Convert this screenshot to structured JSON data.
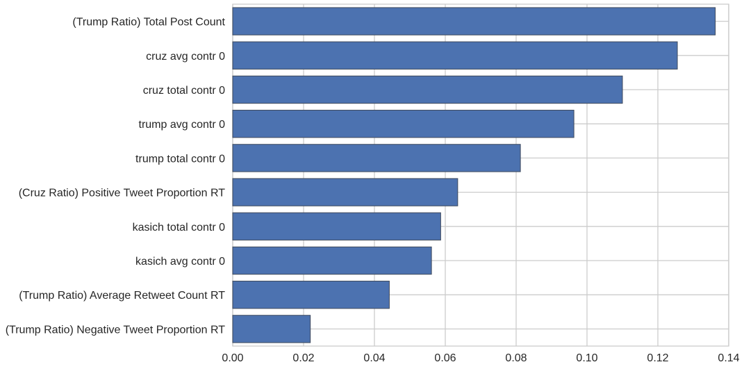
{
  "chart_data": {
    "type": "bar",
    "orientation": "horizontal",
    "categories": [
      "(Trump Ratio) Total Post Count",
      "cruz avg contr 0",
      "cruz total contr 0",
      "trump avg contr 0",
      "trump total contr 0",
      "(Cruz Ratio) Positive Tweet Proportion RT",
      "kasich total contr 0",
      "kasich avg contr 0",
      "(Trump Ratio) Average Retweet Count RT",
      "(Trump Ratio) Negative Tweet Proportion RT"
    ],
    "values": [
      0.1362,
      0.1255,
      0.11,
      0.0963,
      0.0812,
      0.0635,
      0.0587,
      0.0561,
      0.0442,
      0.0219
    ],
    "xlim": [
      0,
      0.14
    ],
    "xticks": [
      "0.00",
      "0.02",
      "0.04",
      "0.06",
      "0.08",
      "0.10",
      "0.12",
      "0.14"
    ],
    "title": "",
    "xlabel": "",
    "ylabel": "",
    "grid": true,
    "bar_color": "#4c72b0",
    "bar_edge_color": "#3f4a5c",
    "grid_color": "#cccccc"
  }
}
